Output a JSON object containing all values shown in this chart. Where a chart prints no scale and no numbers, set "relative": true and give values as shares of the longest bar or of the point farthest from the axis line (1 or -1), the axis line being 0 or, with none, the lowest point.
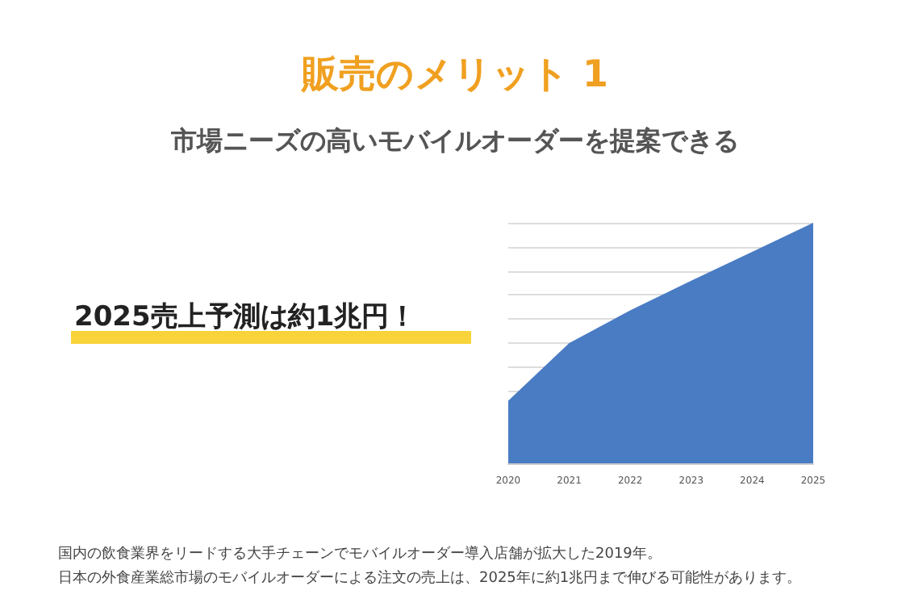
{
  "chart_data": {
    "type": "area",
    "title": "販売のメリット 1",
    "subtitle": "市場ニーズの高いモバイルオーダーを提案できる",
    "categories": [
      "2020",
      "2021",
      "2022",
      "2023",
      "2024",
      "2025"
    ],
    "series": [
      {
        "color": "#4a7cc4",
        "values": [
          0.26,
          0.5,
          0.636,
          0.759,
          0.879,
          1
        ]
      }
    ],
    "relative": true,
    "grid": "y",
    "marker": "none",
    "annotations": [
      "2025売上予測は約1兆円！",
      "国内の飲食業界をリードする大手チェーンでモバイルオーダー導入店舗が拡大した2019年。",
      "日本の外食産業総市場のモバイルオーダーによる注文の売上は、2025年に約1兆円まで伸びる可能性があります。"
    ]
  }
}
